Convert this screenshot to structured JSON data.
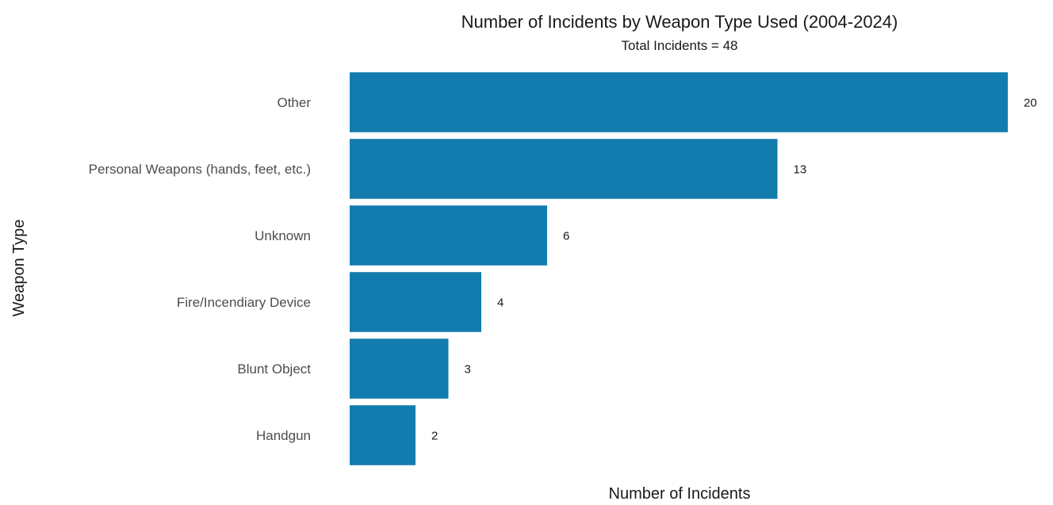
{
  "chart_data": {
    "type": "bar",
    "orientation": "horizontal",
    "title": "Number of Incidents by Weapon Type Used (2004-2024)",
    "subtitle": "Total Incidents = 48",
    "xlabel": "Number of Incidents",
    "ylabel": "Weapon Type",
    "categories": [
      "Other",
      "Personal Weapons (hands, feet, etc.)",
      "Unknown",
      "Fire/Incendiary Device",
      "Blunt Object",
      "Handgun"
    ],
    "values": [
      20,
      13,
      6,
      4,
      3,
      2
    ],
    "data_labels": [
      "20",
      "13",
      "6",
      "4",
      "3",
      "2"
    ],
    "xlim": [
      0,
      20
    ],
    "grid": false,
    "legend": "none",
    "bar_color": "#137CAE"
  }
}
